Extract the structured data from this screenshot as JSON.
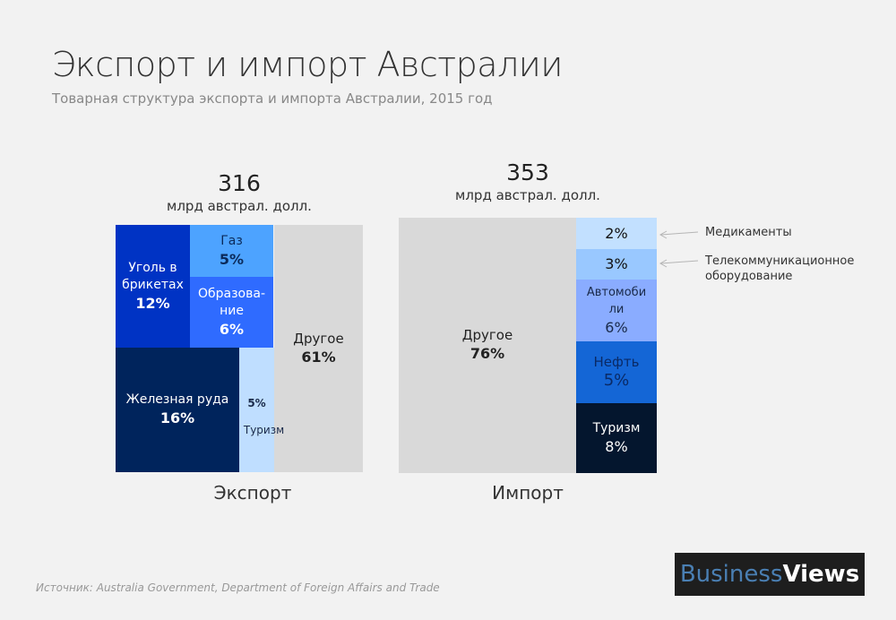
{
  "header": {
    "title": "Экспорт и импорт Австралии",
    "subtitle": "Товарная структура экспорта и импорта Австралии, 2015 год"
  },
  "chart_data": [
    {
      "type": "treemap",
      "name": "Экспорт",
      "total": "316",
      "unit": "млрд австрал. долл.",
      "segments": [
        {
          "label": "Уголь в брикетах",
          "label_display": "Уголь в брикетах",
          "value": 12,
          "pct": "12%",
          "color": "#0033c4"
        },
        {
          "label": "Газ",
          "label_display": "Газ",
          "value": 5,
          "pct": "5%",
          "color": "#4da3ff"
        },
        {
          "label": "Образование",
          "label_display": "Образова-ние",
          "value": 6,
          "pct": "6%",
          "color": "#2f6bff"
        },
        {
          "label": "Железная руда",
          "label_display": "Железная руда",
          "value": 16,
          "pct": "16%",
          "color": "#00245c"
        },
        {
          "label": "Туризм",
          "label_display": "Туризм",
          "value": 5,
          "pct": "5%",
          "color": "#bfdeff"
        },
        {
          "label": "Другое",
          "label_display": "Другое",
          "value": 61,
          "pct": "61%",
          "color": "#d9d9d9"
        }
      ]
    },
    {
      "type": "treemap",
      "name": "Импорт",
      "total": "353",
      "unit": "млрд австрал. долл.",
      "segments": [
        {
          "label": "Другое",
          "label_display": "Другое",
          "value": 76,
          "pct": "76%",
          "color": "#d9d9d9"
        },
        {
          "label": "Медикаменты",
          "label_display": "",
          "value": 2,
          "pct": "2%",
          "color": "#c2e0ff"
        },
        {
          "label": "Телекоммуникационное оборудование",
          "label_display": "",
          "value": 3,
          "pct": "3%",
          "color": "#99c8ff"
        },
        {
          "label": "Автомобили",
          "label_display": "Автомоби ли",
          "value": 6,
          "pct": "6%",
          "color": "#8aacff"
        },
        {
          "label": "Нефть",
          "label_display": "Нефть",
          "value": 5,
          "pct": "5%",
          "color": "#1466d6"
        },
        {
          "label": "Туризм",
          "label_display": "Туризм",
          "value": 8,
          "pct": "8%",
          "color": "#04162e"
        }
      ],
      "callouts": [
        "Медикаменты",
        "Телекоммуникационное оборудование"
      ]
    }
  ],
  "footer": {
    "source": "Источник: Australia Government, Department of Foreign Affairs and Trade",
    "logo_part1": "Business",
    "logo_part2": "Views"
  }
}
